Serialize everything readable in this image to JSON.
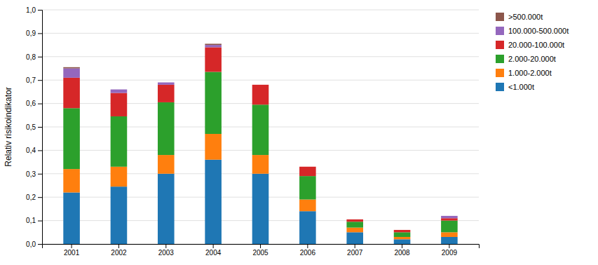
{
  "chart_data": {
    "type": "bar",
    "stacked": true,
    "grid": true,
    "legend": "right",
    "ylabel": "Relativ risikoindikator",
    "categories": [
      "2001",
      "2002",
      "2003",
      "2004",
      "2005",
      "2006",
      "2007",
      "2008",
      "2009"
    ],
    "series": [
      {
        "name": "<1.000t",
        "values": [
          0.22,
          0.245,
          0.3,
          0.36,
          0.3,
          0.14,
          0.05,
          0.02,
          0.03
        ]
      },
      {
        "name": "1.000-2.000t",
        "values": [
          0.1,
          0.085,
          0.08,
          0.11,
          0.08,
          0.05,
          0.02,
          0.01,
          0.02
        ]
      },
      {
        "name": "2.000-20.000t",
        "values": [
          0.26,
          0.215,
          0.225,
          0.265,
          0.215,
          0.1,
          0.025,
          0.02,
          0.05
        ]
      },
      {
        "name": "20.000-100.000t",
        "values": [
          0.13,
          0.1,
          0.075,
          0.105,
          0.085,
          0.04,
          0.01,
          0.01,
          0.01
        ]
      },
      {
        "name": "100.000-500.000t",
        "values": [
          0.04,
          0.015,
          0.01,
          0.01,
          0.0,
          0.0,
          0.0,
          0.0,
          0.01
        ]
      },
      {
        "name": ">500.000t",
        "values": [
          0.005,
          0.0,
          0.0,
          0.005,
          0.0,
          0.0,
          0.0,
          0.0,
          0.0
        ]
      }
    ],
    "ylim": [
      0,
      1.0
    ],
    "yticks": [
      {
        "value": 0.0,
        "label": "0,0"
      },
      {
        "value": 0.1,
        "label": "0,1"
      },
      {
        "value": 0.2,
        "label": "0,2"
      },
      {
        "value": 0.3,
        "label": "0,3"
      },
      {
        "value": 0.4,
        "label": "0,4"
      },
      {
        "value": 0.5,
        "label": "0,5"
      },
      {
        "value": 0.6,
        "label": "0,6"
      },
      {
        "value": 0.7,
        "label": "0,7"
      },
      {
        "value": 0.8,
        "label": "0,8"
      },
      {
        "value": 0.9,
        "label": "0,9"
      },
      {
        "value": 1.0,
        "label": "1,0"
      }
    ]
  }
}
